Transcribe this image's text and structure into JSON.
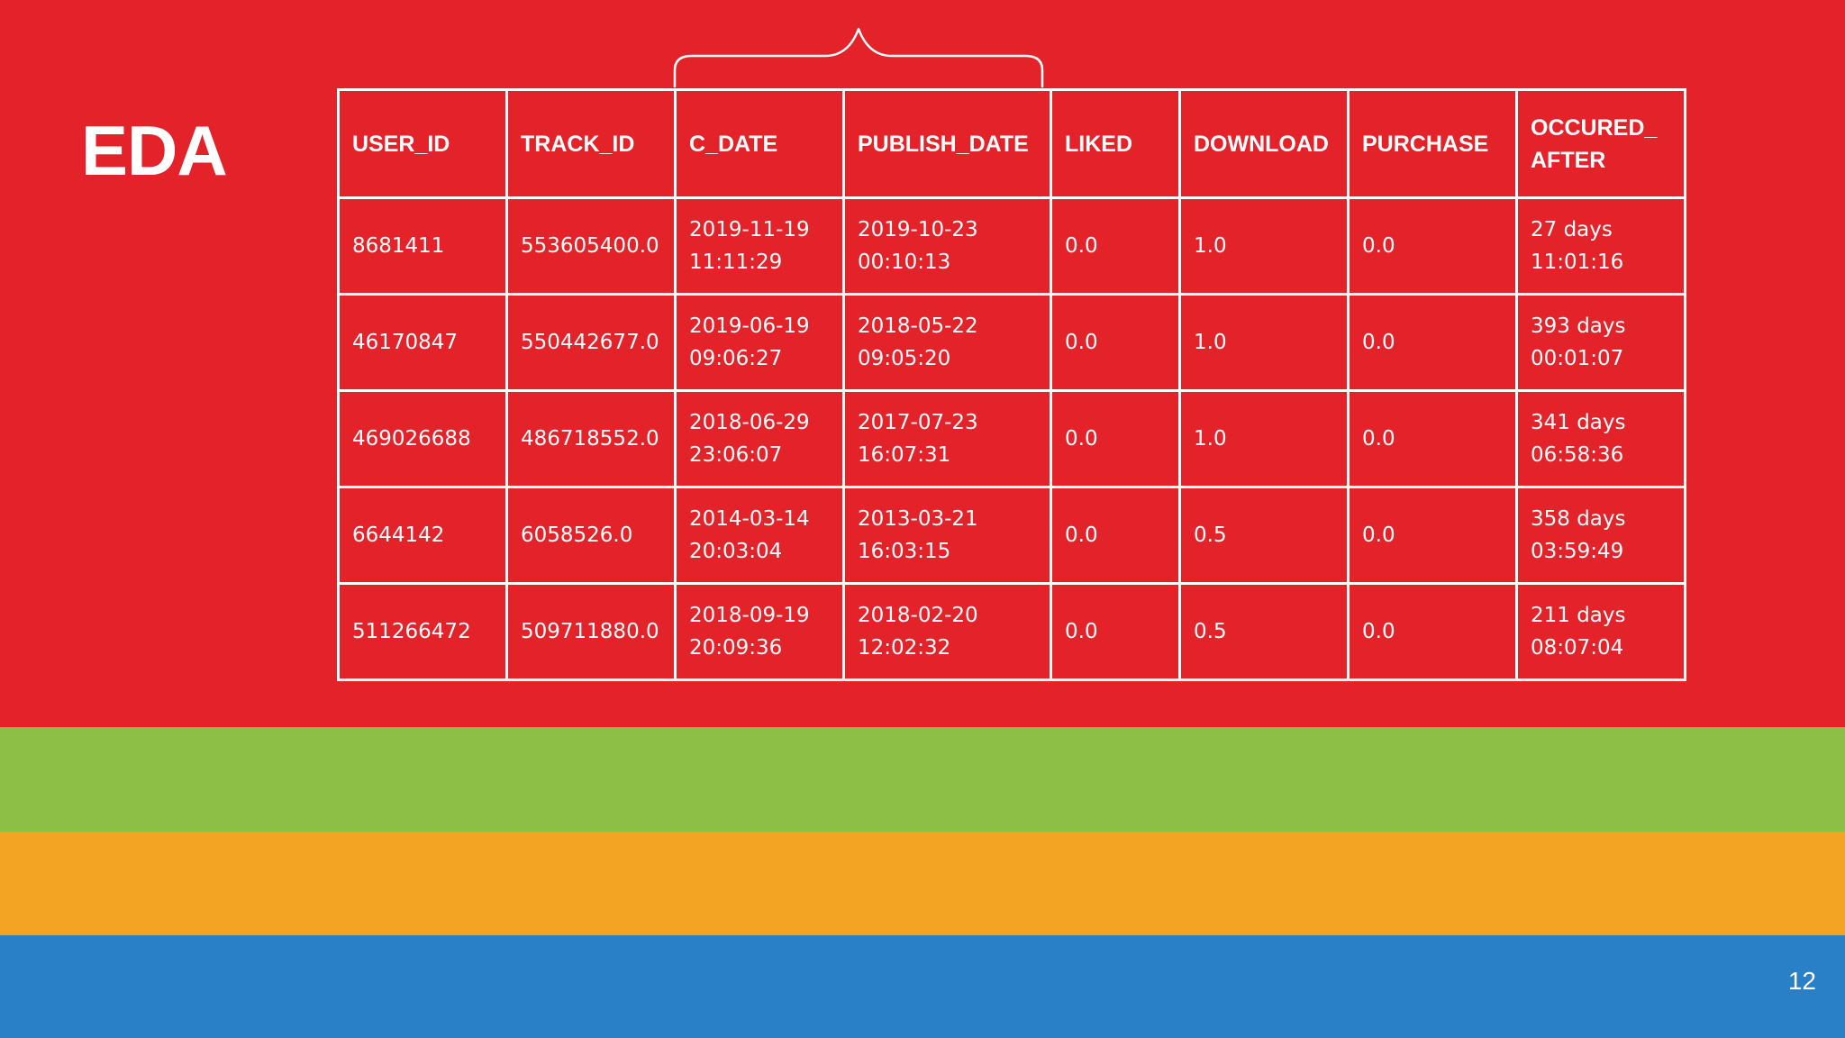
{
  "slide": {
    "title": "EDA",
    "page_number": "12",
    "colors": {
      "red": "#E3222A",
      "green": "#8DBE45",
      "orange": "#F4A423",
      "blue": "#2A80C7",
      "text": "#FFFFFF"
    }
  },
  "table": {
    "headers": [
      [
        "USER_ID"
      ],
      [
        "TRACK_ID"
      ],
      [
        "C_DATE"
      ],
      [
        "PUBLISH_DATE"
      ],
      [
        "LIKED"
      ],
      [
        "DOWNLOAD"
      ],
      [
        "PURCHASE"
      ],
      [
        "OCCURED_",
        "AFTER"
      ]
    ],
    "rows": [
      [
        [
          "8681411"
        ],
        [
          "553605400.0"
        ],
        [
          "2019-11-19",
          "11:11:29"
        ],
        [
          "2019-10-23",
          "00:10:13"
        ],
        [
          "0.0"
        ],
        [
          "1.0"
        ],
        [
          "0.0"
        ],
        [
          "27 days",
          "11:01:16"
        ]
      ],
      [
        [
          "46170847"
        ],
        [
          "550442677.0"
        ],
        [
          "2019-06-19",
          "09:06:27"
        ],
        [
          "2018-05-22",
          "09:05:20"
        ],
        [
          "0.0"
        ],
        [
          "1.0"
        ],
        [
          "0.0"
        ],
        [
          "393 days",
          "00:01:07"
        ]
      ],
      [
        [
          "469026688"
        ],
        [
          "486718552.0"
        ],
        [
          "2018-06-29",
          "23:06:07"
        ],
        [
          "2017-07-23",
          "16:07:31"
        ],
        [
          "0.0"
        ],
        [
          "1.0"
        ],
        [
          "0.0"
        ],
        [
          "341 days",
          "06:58:36"
        ]
      ],
      [
        [
          "6644142"
        ],
        [
          "6058526.0"
        ],
        [
          "2014-03-14",
          "20:03:04"
        ],
        [
          "2013-03-21",
          "16:03:15"
        ],
        [
          "0.0"
        ],
        [
          "0.5"
        ],
        [
          "0.0"
        ],
        [
          "358 days",
          "03:59:49"
        ]
      ],
      [
        [
          "511266472"
        ],
        [
          "509711880.0"
        ],
        [
          "2018-09-19",
          "20:09:36"
        ],
        [
          "2018-02-20",
          "12:02:32"
        ],
        [
          "0.0"
        ],
        [
          "0.5"
        ],
        [
          "0.0"
        ],
        [
          "211 days",
          "08:07:04"
        ]
      ]
    ]
  }
}
